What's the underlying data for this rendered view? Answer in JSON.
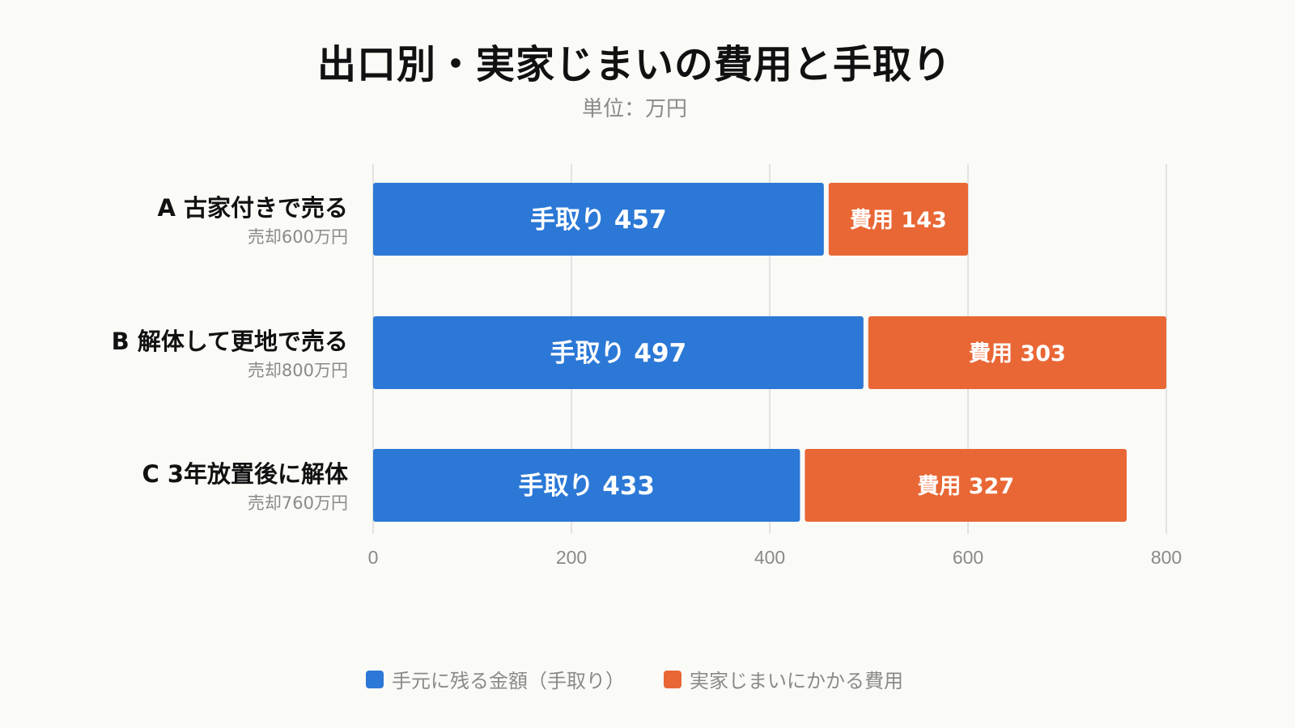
{
  "title": "出口別・実家じまいの費用と手取り",
  "subtitle": "単位：万円",
  "colors": {
    "net": "#2b78d6",
    "cost": "#e96735",
    "grid": "#d9d9d9",
    "axis_text": "#8a8a8a",
    "label_text": "#111111",
    "sub_label_text": "#8a8a8a"
  },
  "chart_data": {
    "type": "bar",
    "orientation": "horizontal",
    "stacked": true,
    "title": "出口別・実家じまいの費用と手取り",
    "subtitle": "単位：万円",
    "categories": [
      "A 古家付きで売る",
      "B 解体して更地で売る",
      "C 3年放置後に解体"
    ],
    "category_sublabels": [
      "売却600万円",
      "売却800万円",
      "売却760万円"
    ],
    "series": [
      {
        "name": "手元に残る金額（手取り）",
        "short_label": "手取り",
        "values": [
          457,
          497,
          433
        ]
      },
      {
        "name": "実家じまいにかかる費用",
        "short_label": "費用",
        "values": [
          143,
          303,
          327
        ]
      }
    ],
    "xlim": [
      0,
      800
    ],
    "xticks": [
      0,
      200,
      400,
      600,
      800
    ],
    "grid": true,
    "legend": "bottom-center"
  }
}
